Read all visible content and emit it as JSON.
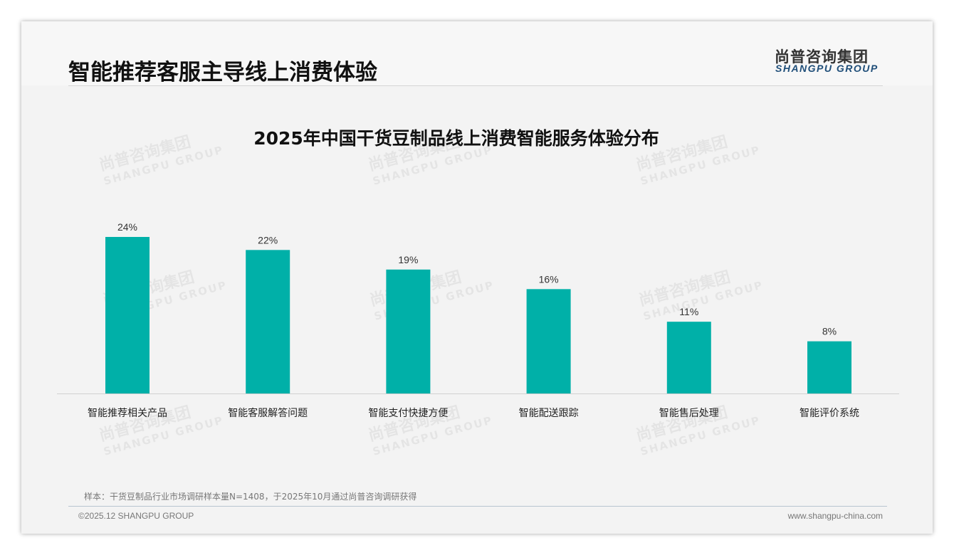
{
  "header": {
    "title": "智能推荐客服主导线上消费体验",
    "logo_cn": "尚普咨询集团",
    "logo_en": "SHANGPU GROUP"
  },
  "watermark": {
    "cn": "尚普咨询集团",
    "en": "SHANGPU GROUP"
  },
  "chart_data": {
    "type": "bar",
    "title": "2025年中国干货豆制品线上消费智能服务体验分布",
    "categories": [
      "智能推荐相关产品",
      "智能客服解答问题",
      "智能支付快捷方便",
      "智能配送跟踪",
      "智能售后处理",
      "智能评价系统"
    ],
    "values": [
      24,
      22,
      19,
      16,
      11,
      8
    ],
    "value_labels": [
      "24%",
      "22%",
      "19%",
      "16%",
      "11%",
      "8%"
    ],
    "unit": "%",
    "ylim": [
      0,
      24
    ],
    "grid": false,
    "legend": "none",
    "bar_color": "#00b0a8"
  },
  "footer": {
    "note": "样本：干货豆制品行业市场调研样本量N=1408，于2025年10月通过尚普咨询调研获得",
    "copyright": "©2025.12 SHANGPU GROUP",
    "url": "www.shangpu-china.com"
  }
}
